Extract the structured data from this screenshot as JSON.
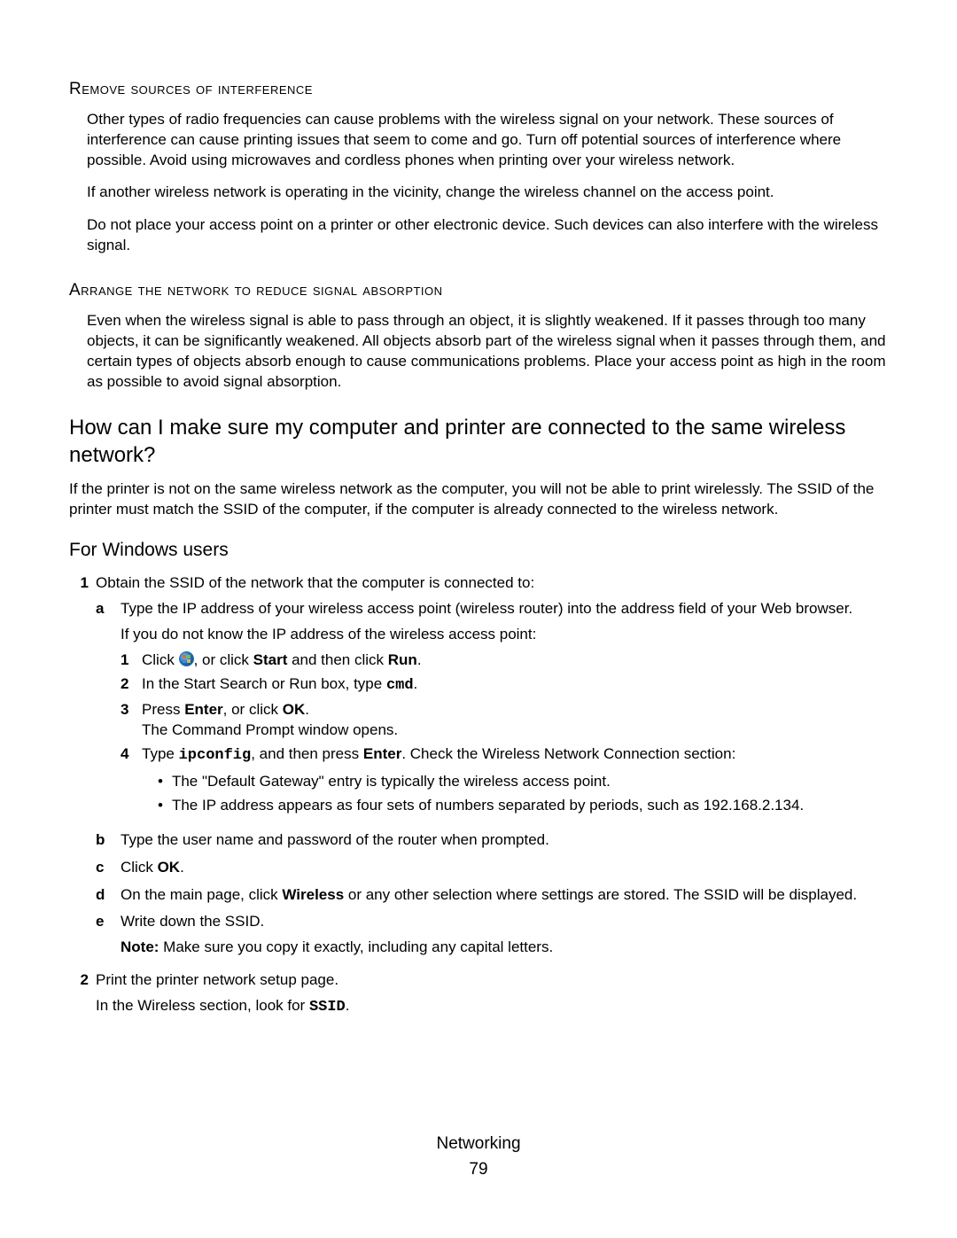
{
  "colors": {
    "text": "#000000",
    "background": "#ffffff",
    "orb_gradient": [
      "#8fd4ff",
      "#1e74c9",
      "#0a3b78"
    ],
    "orb_border": "#2a6fb0",
    "flag": [
      "#e06a1f",
      "#7fbf3f",
      "#3f8fd4",
      "#e6c23f"
    ]
  },
  "typography": {
    "body_font": "Segoe UI / Myriad Pro",
    "heading_font": "Arial",
    "body_size_pt": 12,
    "smallcaps_size_pt": 13,
    "h2_size_pt": 17,
    "h3_size_pt": 15
  },
  "section1": {
    "heading": "Remove sources of interference",
    "p1": "Other types of radio frequencies can cause problems with the wireless signal on your network. These sources of interference can cause printing issues that seem to come and go. Turn off potential sources of interference where possible. Avoid using microwaves and cordless phones when printing over your wireless network.",
    "p2": "If another wireless network is operating in the vicinity, change the wireless channel on the access point.",
    "p3": "Do not place your access point on a printer or other electronic device. Such devices can also interfere with the wireless signal."
  },
  "section2": {
    "heading": "Arrange the network to reduce signal absorption",
    "p1": "Even when the wireless signal is able to pass through an object, it is slightly weakened. If it passes through too many objects, it can be significantly weakened. All objects absorb part of the wireless signal when it passes through them, and certain types of objects absorb enough to cause communications problems. Place your access point as high in the room as possible to avoid signal absorption."
  },
  "section3": {
    "heading": "How can I make sure my computer and printer are connected to the same wireless network?",
    "intro": "If the printer is not on the same wireless network as the computer, you will not be able to print wirelessly. The SSID of the printer must match the SSID of the computer, if the computer is already connected to the wireless network.",
    "windows_heading": "For Windows users",
    "step1": "Obtain the SSID of the network that the computer is connected to:",
    "step1a": "Type the IP address of your wireless access point (wireless router) into the address field of your Web browser.",
    "step1a_followup": "If you do not know the IP address of the wireless access point:",
    "inner1_pre": "Click ",
    "inner1_mid": ", or click ",
    "inner1_start": "Start",
    "inner1_then": " and then click ",
    "inner1_run": "Run",
    "inner1_end": ".",
    "inner2_a": "In the Start Search or Run box, type ",
    "inner2_cmd": "cmd",
    "inner2_end": ".",
    "inner3_a": "Press ",
    "inner3_enter": "Enter",
    "inner3_b": ", or click ",
    "inner3_ok": "OK",
    "inner3_c": ".",
    "inner3_line2": "The Command Prompt window opens.",
    "inner4_a": "Type ",
    "inner4_ipconfig": "ipconfig",
    "inner4_b": ", and then press ",
    "inner4_enter": "Enter",
    "inner4_c": ". Check the Wireless Network Connection section:",
    "bullet1": "The \"Default Gateway\" entry is typically the wireless access point.",
    "bullet2": "The IP address appears as four sets of numbers separated by periods, such as 192.168.2.134.",
    "step1b": "Type the user name and password of the router when prompted.",
    "step1c_a": "Click ",
    "step1c_ok": "OK",
    "step1c_b": ".",
    "step1d_a": "On the main page, click ",
    "step1d_wireless": "Wireless",
    "step1d_b": " or any other selection where settings are stored. The SSID will be displayed.",
    "step1e": "Write down the SSID.",
    "step1e_note_label": "Note:",
    "step1e_note": " Make sure you copy it exactly, including any capital letters.",
    "step2": "Print the printer network setup page.",
    "step2_line2_a": "In the Wireless section, look for ",
    "step2_ssid": "SSID",
    "step2_line2_b": "."
  },
  "footer": {
    "title": "Networking",
    "page": "79"
  }
}
